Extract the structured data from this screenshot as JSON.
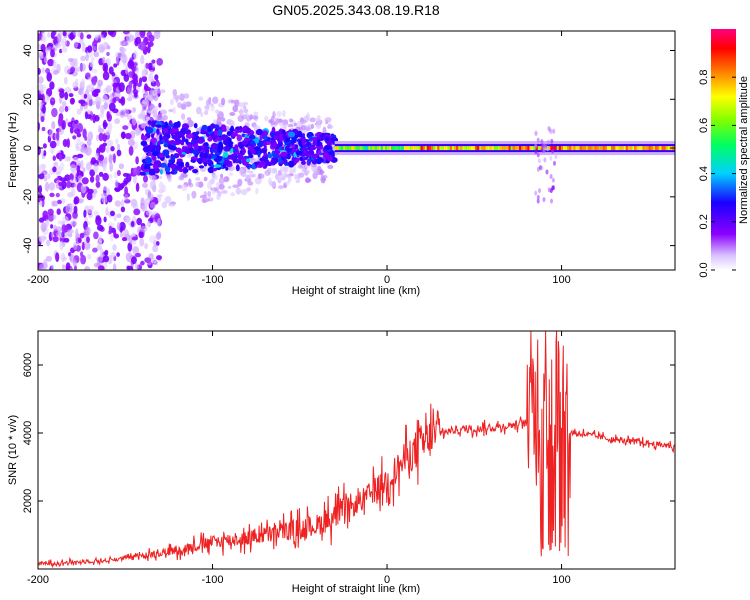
{
  "title": "GN05.2025.343.08.19.R18",
  "chart_data": [
    {
      "type": "heatmap",
      "xlabel": "Height of straight line (km)",
      "ylabel": "Frequency (Hz)",
      "xlim": [
        -200,
        165
      ],
      "ylim": [
        -50,
        48
      ],
      "x_ticks": [
        -200,
        -100,
        0,
        100
      ],
      "y_ticks": [
        -40,
        -20,
        0,
        20,
        40
      ],
      "colorbar": {
        "label": "Normalized spectral amplitude",
        "range": [
          0,
          1
        ],
        "ticks": [
          "0.0",
          "0.2",
          "0.4",
          "0.6",
          "0.8"
        ],
        "colors": [
          "#ffffff",
          "#8800ff",
          "#0000ff",
          "#00ffff",
          "#00ff00",
          "#ffff00",
          "#ff8800",
          "#ff0000",
          "#ff0088"
        ]
      },
      "description_regions": {
        "noise_region_x": [
          -200,
          -140
        ],
        "broadband_region_x": [
          -140,
          -30
        ],
        "narrowband_line_x": [
          -30,
          165
        ],
        "line_frequency": 0
      }
    },
    {
      "type": "line",
      "xlabel": "Height of straight line (km)",
      "ylabel": "SNR (10 * v/v)",
      "xlim": [
        -200,
        165
      ],
      "ylim": [
        0,
        7000
      ],
      "x_ticks": [
        -200,
        -100,
        0,
        100
      ],
      "y_ticks": [
        2000,
        4000,
        6000
      ],
      "series": [
        {
          "name": "SNR",
          "color": "#ee2222",
          "x": [
            -200,
            -180,
            -160,
            -140,
            -120,
            -100,
            -80,
            -60,
            -40,
            -20,
            0,
            10,
            20,
            30,
            40,
            60,
            80,
            85,
            90,
            95,
            100,
            105,
            110,
            130,
            150,
            165
          ],
          "y": [
            150,
            200,
            250,
            400,
            550,
            800,
            900,
            1100,
            1300,
            1800,
            2600,
            3200,
            3700,
            4000,
            4100,
            4150,
            4300,
            4800,
            5500,
            5000,
            5000,
            4000,
            4000,
            3800,
            3700,
            3600
          ]
        }
      ]
    }
  ]
}
